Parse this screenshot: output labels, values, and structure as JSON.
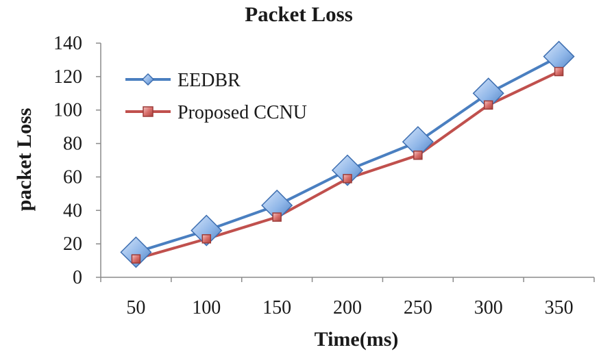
{
  "chart_data": {
    "type": "line",
    "title": "Packet Loss",
    "xlabel": "Time(ms)",
    "ylabel": "packet Loss",
    "categories": [
      "50",
      "100",
      "150",
      "200",
      "250",
      "300",
      "350"
    ],
    "ylim": [
      0,
      140
    ],
    "yticks": [
      "0",
      "20",
      "40",
      "60",
      "80",
      "100",
      "120",
      "140"
    ],
    "legend_position": "top-left",
    "grid": false,
    "series": [
      {
        "name": "EEDBR",
        "marker": "diamond",
        "color": "#4a7fc0",
        "values": [
          15,
          28,
          43,
          64,
          81,
          110,
          132
        ]
      },
      {
        "name": "Proposed CCNU",
        "marker": "square",
        "color": "#c0504d",
        "values": [
          11,
          23,
          36,
          59,
          73,
          103,
          123
        ]
      }
    ]
  }
}
